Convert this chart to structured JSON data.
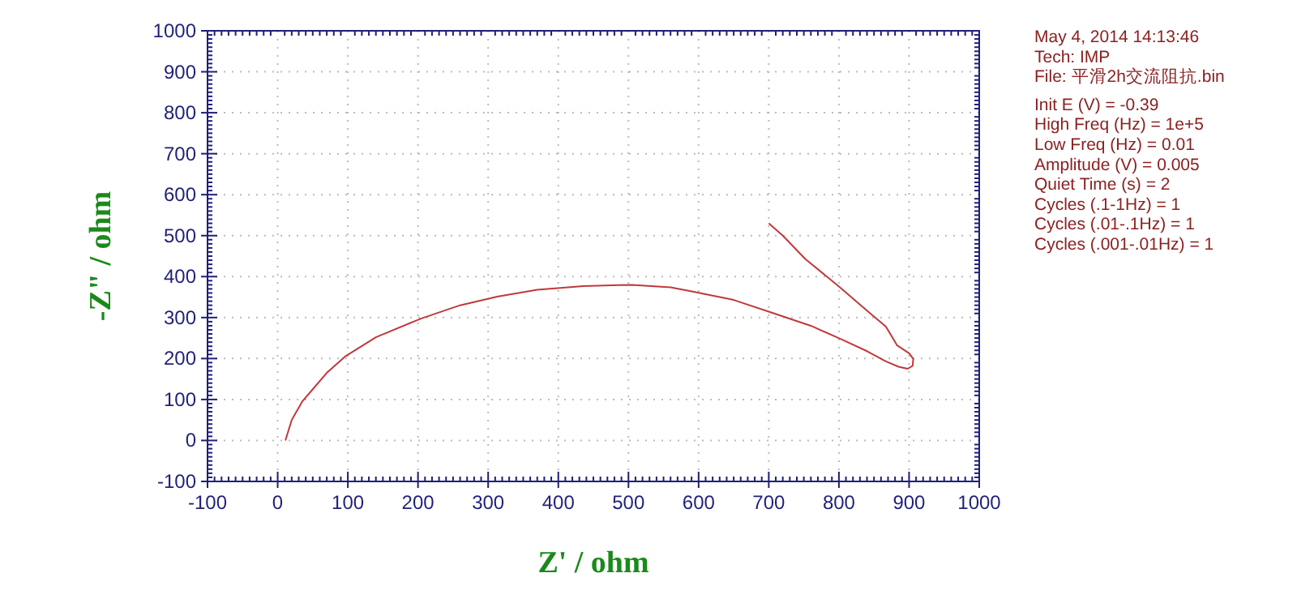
{
  "chart_data": {
    "type": "line",
    "xlabel": "Z' / ohm",
    "ylabel": "-Z\" / ohm",
    "x": [
      11,
      20,
      35,
      51,
      70,
      97,
      140,
      205,
      260,
      313,
      370,
      436,
      505,
      560,
      590,
      650,
      706,
      760,
      806,
      840,
      867,
      885,
      898,
      905,
      906,
      900,
      883,
      867,
      844,
      800,
      752,
      720,
      700
    ],
    "series": [
      {
        "color": "#c0393b",
        "values": [
          0,
          50,
          95,
          127,
          165,
          206,
          252,
          298,
          330,
          351,
          368,
          377,
          380,
          374,
          364,
          343,
          311,
          280,
          245,
          218,
          193,
          180,
          175,
          182,
          199,
          213,
          232,
          278,
          311,
          376,
          443,
          500,
          530
        ]
      }
    ],
    "xlim": [
      -100,
      1000
    ],
    "xticks": [
      -100,
      0,
      100,
      200,
      300,
      400,
      500,
      600,
      700,
      800,
      900,
      1000
    ],
    "ylim": [
      -100,
      1000
    ],
    "yticks": [
      -100,
      0,
      100,
      200,
      300,
      400,
      500,
      600,
      700,
      800,
      900,
      1000
    ],
    "grid": true,
    "line_style": "solid",
    "marker": "none",
    "annotations": [
      "May 4, 2014    14:13:46",
      "Tech: IMP",
      "File: 平滑2h交流阻抗.bin",
      "Init E (V) = -0.39",
      "High Freq (Hz) = 1e+5",
      "Low Freq (Hz) = 0.01",
      "Amplitude (V) = 0.005",
      "Quiet Time (s) = 2",
      "Cycles (.1-1Hz) = 1",
      "Cycles (.01-.1Hz) = 1",
      "Cycles (.001-.01Hz) = 1"
    ]
  }
}
